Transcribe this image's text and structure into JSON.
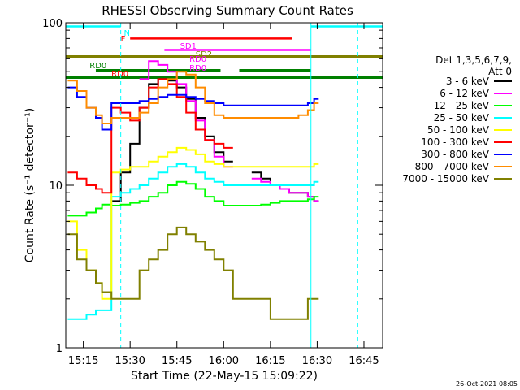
{
  "chart_data": {
    "type": "line",
    "title": "RHESSI Observing Summary Count Rates",
    "xlabel": "Start Time (22-May-15 15:09:22)",
    "ylabel": "Count Rate (s⁻¹ detector⁻¹)",
    "yscale": "log",
    "ylim": [
      1,
      100
    ],
    "xlim": [
      "15:09:22",
      "16:51:00"
    ],
    "grid": false,
    "legend_position": "right",
    "legend_header": [
      "Det 1,3,5,6,7,9,",
      "Att 0"
    ],
    "x_ticks": [
      "15:15",
      "15:30",
      "15:45",
      "16:00",
      "16:15",
      "16:30",
      "16:45"
    ],
    "y_ticks": [
      "1",
      "10",
      "100"
    ],
    "x": [
      "15:10",
      "15:13",
      "15:16",
      "15:19",
      "15:21",
      "15:24",
      "15:27",
      "15:30",
      "15:33",
      "15:36",
      "15:39",
      "15:42",
      "15:45",
      "15:48",
      "15:51",
      "15:54",
      "15:57",
      "16:00",
      "16:03",
      "16:06",
      "16:09",
      "16:12",
      "16:15",
      "16:18",
      "16:21",
      "16:24",
      "16:27",
      "16:29"
    ],
    "series": [
      {
        "name": "3 - 6 keV",
        "color": "#000000",
        "values": [
          null,
          null,
          null,
          null,
          null,
          8,
          12,
          18,
          30,
          42,
          45,
          44,
          40,
          34,
          26,
          20,
          16,
          14,
          null,
          null,
          12,
          11,
          10,
          9.5,
          9,
          9,
          8.5,
          8
        ]
      },
      {
        "name": "6 - 12 keV",
        "color": "#ff00ff",
        "values": [
          null,
          null,
          null,
          null,
          null,
          null,
          null,
          null,
          45,
          58,
          55,
          50,
          42,
          33,
          25,
          19,
          15,
          13,
          null,
          null,
          11,
          10.5,
          10,
          9.5,
          9,
          9,
          8.5,
          8
        ]
      },
      {
        "name": "12 - 25 keV",
        "color": "#00ff00",
        "values": [
          6.5,
          6.5,
          6.8,
          7.2,
          7.6,
          7.5,
          7.6,
          7.8,
          8,
          8.5,
          9,
          10,
          10.5,
          10.2,
          9.5,
          8.5,
          8,
          7.5,
          7.5,
          7.5,
          7.5,
          7.6,
          7.8,
          8,
          8,
          8,
          8.2,
          8.5
        ]
      },
      {
        "name": "25 - 50 keV",
        "color": "#00ffff",
        "values": [
          1.5,
          1.5,
          1.6,
          1.7,
          1.7,
          8.5,
          9,
          9.5,
          10,
          11,
          12,
          13,
          13.5,
          13,
          12,
          11,
          10.5,
          10,
          10,
          10,
          10,
          10,
          10,
          10,
          10,
          10,
          10,
          10.5
        ]
      },
      {
        "name": "50 - 100 keV",
        "color": "#ffff00",
        "values": [
          6,
          4,
          3,
          2.5,
          2,
          12,
          12.5,
          13,
          13,
          14,
          15,
          16,
          17,
          16.5,
          15.5,
          14,
          13.5,
          13,
          13,
          13,
          13,
          13,
          13,
          13,
          13,
          13,
          13,
          13.5
        ]
      },
      {
        "name": "100 - 300 keV",
        "color": "#ff0000",
        "values": [
          12,
          11,
          10,
          9.5,
          9,
          30,
          28,
          25,
          30,
          40,
          45,
          42,
          35,
          28,
          22,
          19,
          18,
          17,
          null,
          null,
          null,
          null,
          null,
          null,
          null,
          null,
          null,
          null
        ]
      },
      {
        "name": "300 - 800 keV",
        "color": "#0000ff",
        "values": [
          40,
          35,
          30,
          26,
          22,
          32,
          32,
          32,
          33,
          34,
          35,
          36,
          36,
          35,
          34,
          33,
          32,
          31,
          31,
          31,
          31,
          31,
          31,
          31,
          31,
          31,
          32,
          34
        ]
      },
      {
        "name": "800 - 7000 keV",
        "color": "#ff8c00",
        "values": [
          44,
          38,
          30,
          27,
          24,
          26,
          26,
          26,
          28,
          32,
          40,
          45,
          50,
          48,
          40,
          32,
          27,
          26,
          26,
          26,
          26,
          26,
          26,
          26,
          26,
          27,
          29,
          32
        ]
      },
      {
        "name": "7000 - 15000 keV",
        "color": "#808000",
        "values": [
          5,
          3.5,
          3,
          2.5,
          2.2,
          2,
          2,
          2,
          3,
          3.5,
          4,
          5,
          5.5,
          5,
          4.5,
          4,
          3.5,
          3,
          2,
          2,
          2,
          2,
          1.5,
          1.5,
          1.5,
          1.5,
          2,
          2
        ]
      }
    ],
    "flag_bars": [
      {
        "label": "N",
        "color": "#00ffff",
        "segments": [
          [
            "15:09:22",
            "15:27"
          ],
          [
            "16:28",
            "16:51"
          ]
        ]
      },
      {
        "label": "F",
        "color": "#ff0000",
        "segments": [
          [
            "15:30",
            "16:22"
          ]
        ]
      },
      {
        "label": "SD1",
        "color": "#ff00ff",
        "segments": [
          [
            "15:41",
            "16:28"
          ]
        ]
      },
      {
        "label": "SD2",
        "color": "#808000",
        "segments": [
          [
            "15:09:22",
            "16:51"
          ]
        ]
      },
      {
        "label": "RD0",
        "color": "#008000",
        "segments": [
          [
            "15:09:22",
            "16:51"
          ]
        ]
      },
      {
        "label": "RD0",
        "color": "#008000",
        "segments": [
          [
            "15:19",
            "15:59"
          ],
          [
            "16:05",
            "16:28"
          ]
        ]
      }
    ],
    "annotations": [
      "N",
      "F",
      "SD1",
      "SD2",
      "RD0",
      "RD0",
      "RD0",
      "RD0"
    ],
    "timestamp": "26-Oct-2021 08:05"
  }
}
